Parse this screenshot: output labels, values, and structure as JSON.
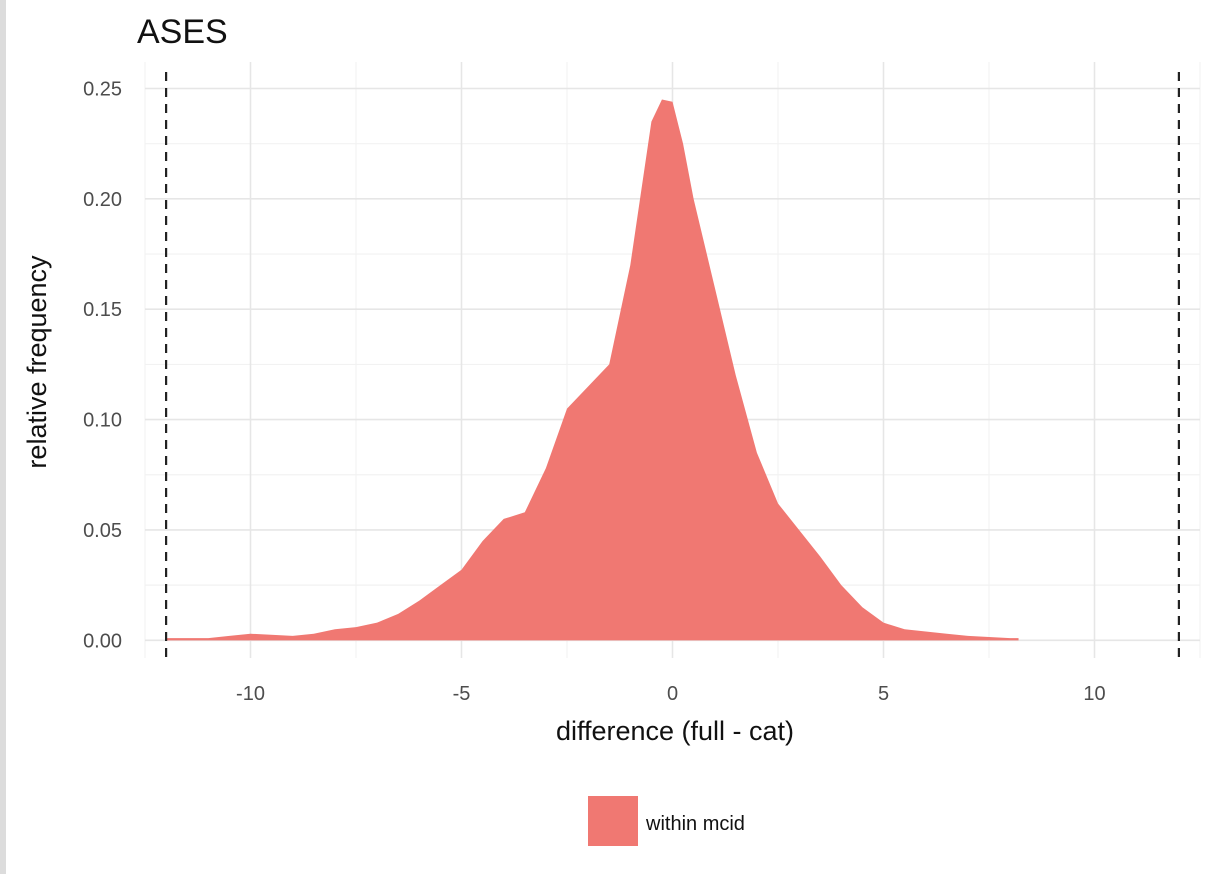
{
  "chart_data": {
    "type": "area",
    "title": "ASES",
    "xlabel": "difference (full - cat)",
    "ylabel": "relative frequency",
    "xlim": [
      -12.5,
      12.5
    ],
    "ylim": [
      -0.008,
      0.262
    ],
    "x_ticks": [
      -10,
      -5,
      0,
      5,
      10
    ],
    "x_tick_labels": [
      "-10",
      "-5",
      "0",
      "5",
      "10"
    ],
    "y_ticks": [
      0,
      0.05,
      0.1,
      0.15,
      0.2,
      0.25
    ],
    "y_tick_labels": [
      "0.00",
      "0.05",
      "0.10",
      "0.15",
      "0.20",
      "0.25"
    ],
    "grid": true,
    "reference_lines_x": [
      -12,
      12
    ],
    "legend_position": "bottom",
    "series": [
      {
        "name": "within mcid",
        "color": "#f07872",
        "x": [
          -12,
          -11,
          -10.5,
          -10,
          -9,
          -8.5,
          -8,
          -7.5,
          -7,
          -6.5,
          -6,
          -5.5,
          -5,
          -4.5,
          -4,
          -3.5,
          -3,
          -2.5,
          -2,
          -1.5,
          -1,
          -0.5,
          -0.25,
          0,
          0.25,
          0.5,
          1,
          1.5,
          2,
          2.5,
          3,
          3.5,
          4,
          4.5,
          5,
          5.5,
          6,
          6.5,
          7,
          7.5,
          8,
          8.2
        ],
        "y": [
          0.001,
          0.001,
          0.002,
          0.003,
          0.002,
          0.003,
          0.005,
          0.006,
          0.008,
          0.012,
          0.018,
          0.025,
          0.032,
          0.045,
          0.055,
          0.058,
          0.078,
          0.105,
          0.115,
          0.125,
          0.17,
          0.235,
          0.245,
          0.244,
          0.225,
          0.2,
          0.16,
          0.12,
          0.085,
          0.062,
          0.05,
          0.038,
          0.025,
          0.015,
          0.008,
          0.005,
          0.004,
          0.003,
          0.002,
          0.0015,
          0.001,
          0.001
        ]
      }
    ]
  }
}
